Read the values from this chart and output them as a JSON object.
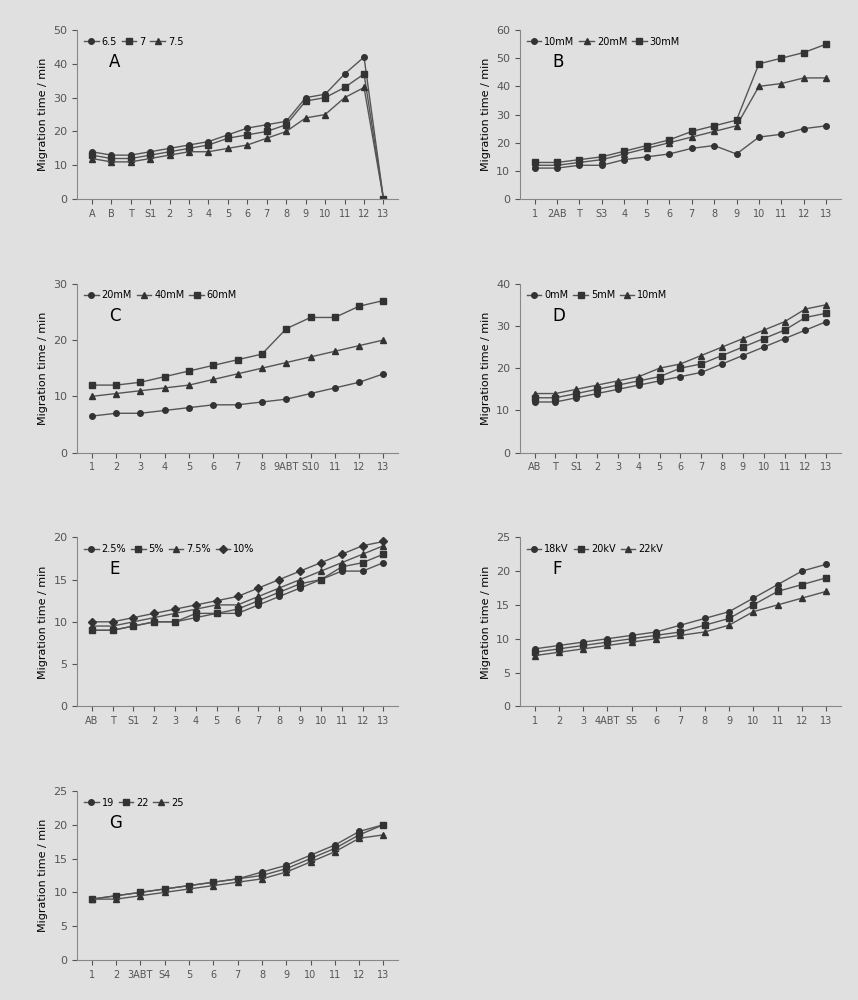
{
  "panels": [
    {
      "label": "A",
      "ylabel": "Migration time / min",
      "ylim": [
        0,
        50
      ],
      "yticks": [
        0,
        10,
        20,
        30,
        40,
        50
      ],
      "xtick_labels": [
        "A",
        "B",
        "T",
        "S1",
        "2",
        "3",
        "4",
        "5",
        "6",
        "7",
        "8",
        "9",
        "10",
        "11",
        "12",
        "13"
      ],
      "legend_labels": [
        "6.5",
        "7",
        "7.5"
      ],
      "markers": [
        "o",
        "s",
        "^"
      ],
      "series": [
        [
          14,
          13,
          13,
          14,
          15,
          16,
          17,
          19,
          21,
          22,
          23,
          30,
          31,
          37,
          42,
          0
        ],
        [
          13,
          12,
          12,
          13,
          14,
          15,
          16,
          18,
          19,
          20,
          22,
          29,
          30,
          33,
          37,
          0
        ],
        [
          12,
          11,
          11,
          12,
          13,
          14,
          14,
          15,
          16,
          18,
          20,
          24,
          25,
          30,
          33,
          0
        ]
      ]
    },
    {
      "label": "B",
      "ylabel": "Migration time / min",
      "ylim": [
        0,
        60
      ],
      "yticks": [
        0,
        10,
        20,
        30,
        40,
        50,
        60
      ],
      "xtick_labels": [
        "1",
        "2AB",
        "T",
        "S3",
        "4",
        "5",
        "6",
        "7",
        "8",
        "9",
        "10",
        "11",
        "12",
        "13"
      ],
      "legend_labels": [
        "10mM",
        "20mM",
        "30mM"
      ],
      "markers": [
        "o",
        "^",
        "s"
      ],
      "series": [
        [
          11,
          11,
          12,
          12,
          14,
          15,
          16,
          18,
          19,
          16,
          22,
          23,
          25,
          26
        ],
        [
          12,
          12,
          13,
          14,
          16,
          18,
          20,
          22,
          24,
          26,
          40,
          41,
          43,
          43
        ],
        [
          13,
          13,
          14,
          15,
          17,
          19,
          21,
          24,
          26,
          28,
          48,
          50,
          52,
          55
        ]
      ]
    },
    {
      "label": "C",
      "ylabel": "Migration time / min",
      "ylim": [
        0,
        30
      ],
      "yticks": [
        0,
        10,
        20,
        30
      ],
      "xtick_labels": [
        "1",
        "2",
        "3",
        "4",
        "5",
        "6",
        "7",
        "8",
        "9ABT",
        "S10",
        "11",
        "12",
        "13"
      ],
      "legend_labels": [
        "20mM",
        "40mM",
        "60mM"
      ],
      "markers": [
        "o",
        "^",
        "s"
      ],
      "series": [
        [
          6.5,
          7,
          7,
          7.5,
          8,
          8.5,
          8.5,
          9,
          9.5,
          10.5,
          11.5,
          12.5,
          14
        ],
        [
          10,
          10.5,
          11,
          11.5,
          12,
          13,
          14,
          15,
          16,
          17,
          18,
          19,
          20
        ],
        [
          12,
          12,
          12.5,
          13.5,
          14.5,
          15.5,
          16.5,
          17.5,
          22,
          24,
          24,
          26,
          27
        ]
      ]
    },
    {
      "label": "D",
      "ylabel": "Migration time / min",
      "ylim": [
        0,
        40
      ],
      "yticks": [
        0,
        10,
        20,
        30,
        40
      ],
      "xtick_labels": [
        "AB",
        "T",
        "S1",
        "2",
        "3",
        "4",
        "5",
        "6",
        "7",
        "8",
        "9",
        "10",
        "11",
        "12",
        "13"
      ],
      "legend_labels": [
        "0mM",
        "5mM",
        "10mM"
      ],
      "markers": [
        "o",
        "s",
        "^"
      ],
      "series": [
        [
          12,
          12,
          13,
          14,
          15,
          16,
          17,
          18,
          19,
          21,
          23,
          25,
          27,
          29,
          31
        ],
        [
          13,
          13,
          14,
          15,
          16,
          17,
          18,
          20,
          21,
          23,
          25,
          27,
          29,
          32,
          33
        ],
        [
          14,
          14,
          15,
          16,
          17,
          18,
          20,
          21,
          23,
          25,
          27,
          29,
          31,
          34,
          35
        ]
      ]
    },
    {
      "label": "E",
      "ylabel": "Migration time / min",
      "ylim": [
        0,
        20
      ],
      "yticks": [
        0,
        5,
        10,
        15,
        20
      ],
      "xtick_labels": [
        "AB",
        "T",
        "S1",
        "2",
        "3",
        "4",
        "5",
        "6",
        "7",
        "8",
        "9",
        "10",
        "11",
        "12",
        "13"
      ],
      "legend_labels": [
        "2.5%",
        "5%",
        "7.5%",
        "10%"
      ],
      "markers": [
        "o",
        "s",
        "^",
        "D"
      ],
      "series": [
        [
          9,
          9,
          9.5,
          10,
          10,
          10.5,
          11,
          11,
          12,
          13,
          14,
          15,
          16,
          16,
          17
        ],
        [
          9,
          9,
          9.5,
          10,
          10,
          11,
          11,
          11.5,
          12.5,
          13.5,
          14.5,
          15,
          16.5,
          17,
          18
        ],
        [
          9.5,
          9.5,
          10,
          10.5,
          11,
          11.5,
          12,
          12,
          13,
          14,
          15,
          16,
          17,
          18,
          19
        ],
        [
          10,
          10,
          10.5,
          11,
          11.5,
          12,
          12.5,
          13,
          14,
          15,
          16,
          17,
          18,
          19,
          19.5
        ]
      ]
    },
    {
      "label": "F",
      "ylabel": "Migration time / min",
      "ylim": [
        0,
        25
      ],
      "yticks": [
        0,
        5,
        10,
        15,
        20,
        25
      ],
      "xtick_labels": [
        "1",
        "2",
        "3",
        "4ABT",
        "S5",
        "6",
        "7",
        "8",
        "9",
        "10",
        "11",
        "12",
        "13"
      ],
      "legend_labels": [
        "18kV",
        "20kV",
        "22kV"
      ],
      "markers": [
        "o",
        "s",
        "^"
      ],
      "series": [
        [
          8.5,
          9,
          9.5,
          10,
          10.5,
          11,
          12,
          13,
          14,
          16,
          18,
          20,
          21
        ],
        [
          8,
          8.5,
          9,
          9.5,
          10,
          10.5,
          11,
          12,
          13,
          15,
          17,
          18,
          19
        ],
        [
          7.5,
          8,
          8.5,
          9,
          9.5,
          10,
          10.5,
          11,
          12,
          14,
          15,
          16,
          17
        ]
      ]
    },
    {
      "label": "G",
      "ylabel": "Migration time / min",
      "ylim": [
        0,
        25
      ],
      "yticks": [
        0,
        5,
        10,
        15,
        20,
        25
      ],
      "xtick_labels": [
        "1",
        "2",
        "3ABT",
        "S4",
        "5",
        "6",
        "7",
        "8",
        "9",
        "10",
        "11",
        "12",
        "13"
      ],
      "legend_labels": [
        "19",
        "22",
        "25"
      ],
      "markers": [
        "o",
        "s",
        "^"
      ],
      "series": [
        [
          9,
          9.5,
          10,
          10.5,
          11,
          11.5,
          12,
          13,
          14,
          15.5,
          17,
          19,
          20
        ],
        [
          9,
          9.5,
          10,
          10.5,
          11,
          11.5,
          12,
          12.5,
          13.5,
          15,
          16.5,
          18.5,
          20
        ],
        [
          9,
          9,
          9.5,
          10,
          10.5,
          11,
          11.5,
          12,
          13,
          14.5,
          16,
          18,
          18.5
        ]
      ]
    }
  ],
  "line_color": "#555555",
  "marker_color": "#333333",
  "marker_size": 4,
  "line_width": 1.0,
  "font_size": 8,
  "label_font_size": 9,
  "bg_color": "#e0e0e0"
}
